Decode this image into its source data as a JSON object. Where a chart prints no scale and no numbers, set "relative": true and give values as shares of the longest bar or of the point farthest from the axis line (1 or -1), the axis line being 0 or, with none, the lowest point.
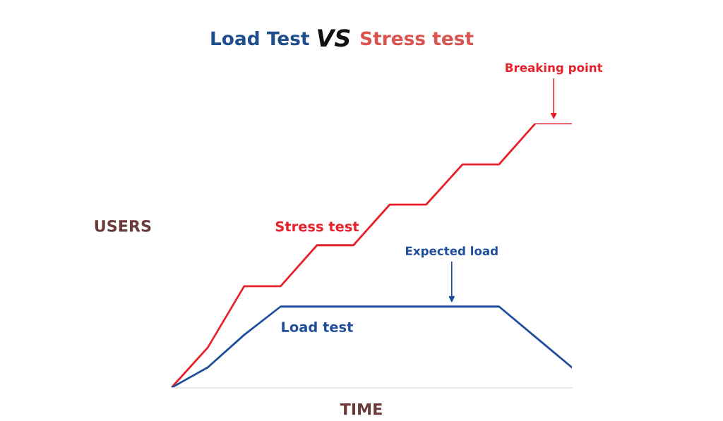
{
  "chart_data": {
    "type": "line",
    "title": "Load Test VS Stress test",
    "xlabel": "TIME",
    "ylabel": "USERS",
    "relative": true,
    "legend": false,
    "marker": "none",
    "line_style": "solid",
    "categories": [
      null,
      null,
      null,
      null,
      null,
      null,
      null,
      null,
      null,
      null,
      null,
      null
    ],
    "series": [
      {
        "name": "Stress test",
        "color": "#e8202a",
        "values": [
          0,
          0.152,
          0.384,
          0.384,
          0.539,
          0.539,
          0.693,
          0.693,
          0.845,
          0.845,
          1,
          1
        ]
      },
      {
        "name": "Load test",
        "color": "#1f4e9a",
        "values": [
          0,
          0.077,
          0.2,
          0.307,
          0.307,
          0.307,
          0.307,
          0.307,
          0.307,
          0.307,
          0.192,
          0.077
        ]
      }
    ],
    "annotations": [
      "Breaking point",
      "Expected load"
    ]
  }
}
